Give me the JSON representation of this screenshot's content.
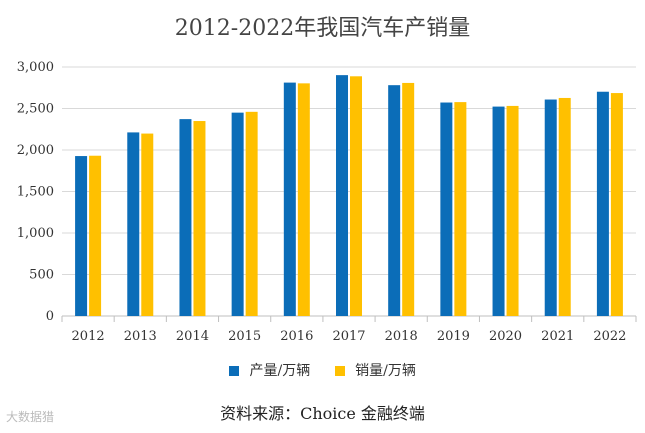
{
  "title": "2012-2022年我国汽车产销量",
  "source": "资料来源：Choice 金融终端",
  "watermark": "大数据猎",
  "colors": {
    "production": "#0B6DB8",
    "sales": "#FFC000",
    "grid": "#d9d9d9",
    "axis": "#bfbfbf"
  },
  "chart_data": {
    "type": "bar",
    "title": "2012-2022年我国汽车产销量",
    "categories": [
      "2012",
      "2013",
      "2014",
      "2015",
      "2016",
      "2017",
      "2018",
      "2019",
      "2020",
      "2021",
      "2022"
    ],
    "series": [
      {
        "name": "产量/万辆",
        "values": [
          1927,
          2212,
          2372,
          2450,
          2812,
          2902,
          2781,
          2572,
          2523,
          2608,
          2702
        ]
      },
      {
        "name": "销量/万辆",
        "values": [
          1931,
          2198,
          2349,
          2460,
          2803,
          2888,
          2808,
          2577,
          2531,
          2627,
          2686
        ]
      }
    ],
    "ylim": [
      0,
      3000
    ],
    "yticks": [
      0,
      500,
      1000,
      1500,
      2000,
      2500,
      3000
    ],
    "ytick_labels": [
      "0",
      "500",
      "1,000",
      "1,500",
      "2,000",
      "2,500",
      "3,000"
    ],
    "grid": true,
    "legend_position": "bottom"
  }
}
